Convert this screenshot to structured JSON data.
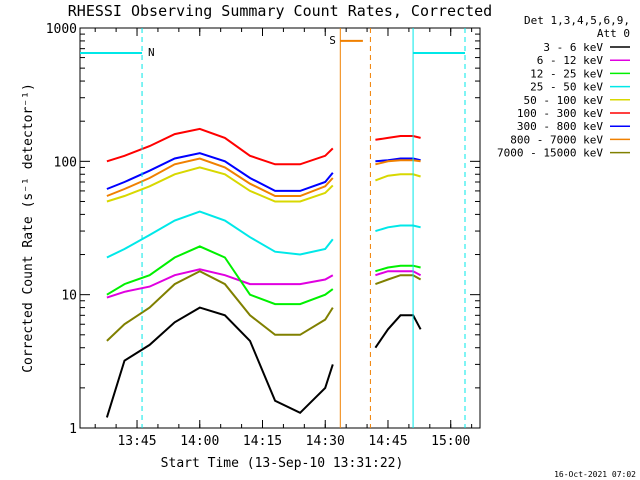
{
  "chart_data": {
    "type": "line",
    "title": "RHESSI Observing Summary Count Rates, Corrected",
    "xlabel": "Start Time (13-Sep-10 13:31:22)",
    "ylabel": "Corrected Count Rate (s⁻¹ detector⁻¹)",
    "ylog": true,
    "ylim": [
      1,
      1000
    ],
    "xlim": [
      "13:31:22",
      "15:07:00"
    ],
    "xticks": [
      "13:45",
      "14:00",
      "14:15",
      "14:30",
      "14:45",
      "15:00"
    ],
    "yticks": [
      "1",
      "10",
      "100",
      "1000"
    ],
    "legend": {
      "placement": "outside-right",
      "header": [
        "Det 1,3,4,5,6,9,",
        "Att 0"
      ]
    },
    "series": [
      {
        "name": "3 - 6 keV",
        "color": "#000000",
        "points": [
          [
            13.63,
            1.2
          ],
          [
            13.7,
            3.2
          ],
          [
            13.8,
            4.2
          ],
          [
            13.9,
            6.2
          ],
          [
            14.0,
            8.0
          ],
          [
            14.1,
            7.0
          ],
          [
            14.2,
            4.5
          ],
          [
            14.3,
            1.6
          ],
          [
            14.4,
            1.3
          ],
          [
            14.5,
            2.0
          ],
          [
            14.53,
            3.0
          ],
          [
            14.7,
            4.0
          ],
          [
            14.75,
            5.5
          ],
          [
            14.8,
            7.0
          ],
          [
            14.85,
            7.0
          ],
          [
            14.88,
            5.5
          ]
        ]
      },
      {
        "name": "6 - 12 keV",
        "color": "#e000e0",
        "points": [
          [
            13.63,
            9.5
          ],
          [
            13.7,
            10.5
          ],
          [
            13.8,
            11.5
          ],
          [
            13.9,
            14.0
          ],
          [
            14.0,
            15.5
          ],
          [
            14.1,
            14.0
          ],
          [
            14.2,
            12.0
          ],
          [
            14.3,
            12.0
          ],
          [
            14.4,
            12.0
          ],
          [
            14.5,
            13.0
          ],
          [
            14.53,
            14.0
          ],
          [
            14.7,
            14.0
          ],
          [
            14.75,
            15.0
          ],
          [
            14.8,
            15.0
          ],
          [
            14.85,
            15.0
          ],
          [
            14.88,
            14.0
          ]
        ]
      },
      {
        "name": "12 - 25 keV",
        "color": "#00f000",
        "points": [
          [
            13.63,
            10.0
          ],
          [
            13.7,
            12.0
          ],
          [
            13.8,
            14.0
          ],
          [
            13.9,
            19.0
          ],
          [
            14.0,
            23.0
          ],
          [
            14.1,
            19.0
          ],
          [
            14.2,
            10.0
          ],
          [
            14.3,
            8.5
          ],
          [
            14.4,
            8.5
          ],
          [
            14.5,
            10.0
          ],
          [
            14.53,
            11.0
          ],
          [
            14.7,
            15.0
          ],
          [
            14.75,
            16.0
          ],
          [
            14.8,
            16.5
          ],
          [
            14.85,
            16.5
          ],
          [
            14.88,
            16.0
          ]
        ]
      },
      {
        "name": "25 - 50 keV",
        "color": "#00e8e8",
        "points": [
          [
            13.63,
            19.0
          ],
          [
            13.7,
            22.0
          ],
          [
            13.8,
            28.0
          ],
          [
            13.9,
            36.0
          ],
          [
            14.0,
            42.0
          ],
          [
            14.1,
            36.0
          ],
          [
            14.2,
            27.0
          ],
          [
            14.3,
            21.0
          ],
          [
            14.4,
            20.0
          ],
          [
            14.5,
            22.0
          ],
          [
            14.53,
            26.0
          ],
          [
            14.7,
            30.0
          ],
          [
            14.75,
            32.0
          ],
          [
            14.8,
            33.0
          ],
          [
            14.85,
            33.0
          ],
          [
            14.88,
            32.0
          ]
        ]
      },
      {
        "name": "50 - 100 keV",
        "color": "#d8d800",
        "points": [
          [
            13.63,
            50.0
          ],
          [
            13.7,
            55.0
          ],
          [
            13.8,
            65.0
          ],
          [
            13.9,
            80.0
          ],
          [
            14.0,
            90.0
          ],
          [
            14.1,
            80.0
          ],
          [
            14.2,
            60.0
          ],
          [
            14.3,
            50.0
          ],
          [
            14.4,
            50.0
          ],
          [
            14.5,
            58.0
          ],
          [
            14.53,
            66.0
          ],
          [
            14.7,
            72.0
          ],
          [
            14.75,
            78.0
          ],
          [
            14.8,
            80.0
          ],
          [
            14.85,
            80.0
          ],
          [
            14.88,
            77.0
          ]
        ]
      },
      {
        "name": "100 - 300 keV",
        "color": "#ff0000",
        "points": [
          [
            13.63,
            100.0
          ],
          [
            13.7,
            110.0
          ],
          [
            13.8,
            130.0
          ],
          [
            13.9,
            160.0
          ],
          [
            14.0,
            175.0
          ],
          [
            14.1,
            150.0
          ],
          [
            14.2,
            110.0
          ],
          [
            14.3,
            95.0
          ],
          [
            14.4,
            95.0
          ],
          [
            14.5,
            110.0
          ],
          [
            14.53,
            125.0
          ],
          [
            14.7,
            145.0
          ],
          [
            14.75,
            150.0
          ],
          [
            14.8,
            155.0
          ],
          [
            14.85,
            155.0
          ],
          [
            14.88,
            150.0
          ]
        ]
      },
      {
        "name": "300 - 800 keV",
        "color": "#0000ff",
        "points": [
          [
            13.63,
            62.0
          ],
          [
            13.7,
            70.0
          ],
          [
            13.8,
            85.0
          ],
          [
            13.9,
            105.0
          ],
          [
            14.0,
            115.0
          ],
          [
            14.1,
            100.0
          ],
          [
            14.2,
            75.0
          ],
          [
            14.3,
            60.0
          ],
          [
            14.4,
            60.0
          ],
          [
            14.5,
            70.0
          ],
          [
            14.53,
            82.0
          ],
          [
            14.7,
            100.0
          ],
          [
            14.75,
            102.0
          ],
          [
            14.8,
            105.0
          ],
          [
            14.85,
            105.0
          ],
          [
            14.88,
            102.0
          ]
        ]
      },
      {
        "name": "800 - 7000 keV",
        "color": "#f08000",
        "points": [
          [
            13.63,
            55.0
          ],
          [
            13.7,
            62.0
          ],
          [
            13.8,
            75.0
          ],
          [
            13.9,
            95.0
          ],
          [
            14.0,
            105.0
          ],
          [
            14.1,
            90.0
          ],
          [
            14.2,
            68.0
          ],
          [
            14.3,
            55.0
          ],
          [
            14.4,
            55.0
          ],
          [
            14.5,
            65.0
          ],
          [
            14.53,
            75.0
          ],
          [
            14.7,
            95.0
          ],
          [
            14.75,
            100.0
          ],
          [
            14.8,
            102.0
          ],
          [
            14.85,
            102.0
          ],
          [
            14.88,
            100.0
          ]
        ]
      },
      {
        "name": "7000 - 15000 keV",
        "color": "#808000",
        "points": [
          [
            13.63,
            4.5
          ],
          [
            13.7,
            6.0
          ],
          [
            13.8,
            8.0
          ],
          [
            13.9,
            12.0
          ],
          [
            14.0,
            15.0
          ],
          [
            14.1,
            12.0
          ],
          [
            14.2,
            7.0
          ],
          [
            14.3,
            5.0
          ],
          [
            14.4,
            5.0
          ],
          [
            14.5,
            6.5
          ],
          [
            14.53,
            8.0
          ],
          [
            14.7,
            12.0
          ],
          [
            14.75,
            13.0
          ],
          [
            14.8,
            14.0
          ],
          [
            14.85,
            14.0
          ],
          [
            14.88,
            13.0
          ]
        ]
      }
    ],
    "annotations": [
      {
        "text": "N",
        "color": "#00e8e8"
      },
      {
        "text": "S",
        "color": "#f08000"
      }
    ],
    "timestamp": "16-Oct-2021 07:02"
  }
}
